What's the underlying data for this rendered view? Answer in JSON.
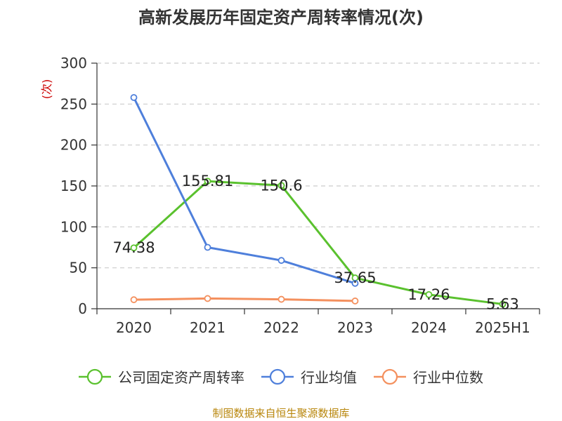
{
  "chart_data": {
    "type": "line",
    "title": "高新发展历年固定资产周转率情况(次)",
    "ylabel": "(次)",
    "xlabel": "",
    "categories": [
      "2020",
      "2021",
      "2022",
      "2023",
      "2024",
      "2025H1"
    ],
    "ylim": [
      0,
      300
    ],
    "yticks": [
      0,
      50,
      100,
      150,
      200,
      250,
      300
    ],
    "grid": true,
    "legend_position": "bottom",
    "series": [
      {
        "name": "公司固定资产周转率",
        "color": "#5ac12e",
        "values": [
          74.38,
          155.81,
          150.6,
          37.65,
          17.26,
          5.63
        ],
        "labels": [
          "74.38",
          "155.81",
          "150.6",
          "37.65",
          "17.26",
          "5.63"
        ]
      },
      {
        "name": "行业均值",
        "color": "#4e7fdb",
        "values": [
          258,
          75,
          59,
          31,
          null,
          null
        ]
      },
      {
        "name": "行业中位数",
        "color": "#f4905e",
        "values": [
          11,
          12.5,
          11.5,
          9.5,
          null,
          null
        ]
      }
    ]
  },
  "source": "制图数据来自恒生聚源数据库"
}
